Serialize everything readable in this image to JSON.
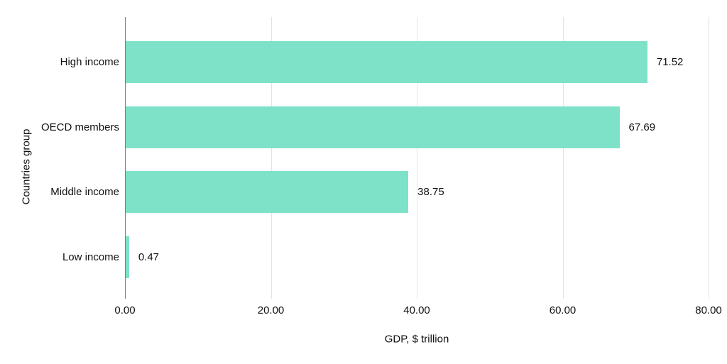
{
  "chart_data": {
    "type": "bar",
    "orientation": "horizontal",
    "title": "",
    "xlabel": "GDP, $ trillion",
    "ylabel": "Countries group",
    "categories": [
      "High income",
      "OECD members",
      "Middle income",
      "Low income"
    ],
    "values": [
      71.52,
      67.69,
      38.75,
      0.47
    ],
    "value_labels": [
      "71.52",
      "67.69",
      "38.75",
      "0.47"
    ],
    "xlim": [
      0,
      80
    ],
    "tick_values": [
      0,
      20,
      40,
      60,
      80
    ],
    "tick_labels": [
      "0.00",
      "20.00",
      "40.00",
      "60.00",
      "80.00"
    ],
    "grid": true,
    "legend": "none",
    "colors": {
      "bar": "#7DE2C8",
      "gridline": "#E3E3E3",
      "axis_line": "#7A7A7A",
      "text": "#111111"
    }
  }
}
